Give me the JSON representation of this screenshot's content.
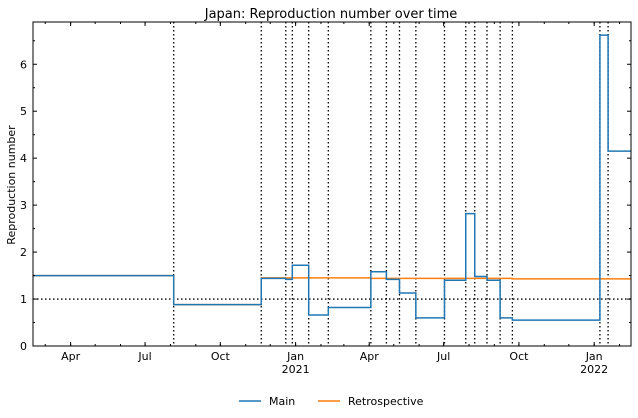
{
  "chart_data": {
    "type": "line",
    "title": "Japan: Reproduction number over time",
    "xlabel": "",
    "ylabel": "Reproduction number",
    "xlim": [
      "2020-02-15",
      "2022-02-15"
    ],
    "ylim": [
      0,
      6.9
    ],
    "x_ticks": [
      {
        "date": "2020-04-01",
        "label": "Apr",
        "sub": ""
      },
      {
        "date": "2020-07-01",
        "label": "Jul",
        "sub": ""
      },
      {
        "date": "2020-10-01",
        "label": "Oct",
        "sub": ""
      },
      {
        "date": "2021-01-01",
        "label": "Jan",
        "sub": "2021"
      },
      {
        "date": "2021-04-01",
        "label": "Apr",
        "sub": ""
      },
      {
        "date": "2021-07-01",
        "label": "Jul",
        "sub": ""
      },
      {
        "date": "2021-10-01",
        "label": "Oct",
        "sub": ""
      },
      {
        "date": "2022-01-01",
        "label": "Jan",
        "sub": "2022"
      }
    ],
    "y_ticks": [
      0,
      1,
      2,
      3,
      4,
      5,
      6
    ],
    "reference_line": 1,
    "breakpoints": [
      "2020-08-05",
      "2020-11-20",
      "2020-12-20",
      "2020-12-28",
      "2021-01-17",
      "2021-02-10",
      "2021-04-03",
      "2021-04-22",
      "2021-05-08",
      "2021-05-28",
      "2021-07-02",
      "2021-07-28",
      "2021-08-08",
      "2021-08-23",
      "2021-09-08",
      "2021-09-23",
      "2022-01-08",
      "2022-01-18"
    ],
    "series": [
      {
        "name": "Main",
        "color": "#1f77b4",
        "steps": [
          {
            "start": "2020-02-15",
            "value": 1.5
          },
          {
            "start": "2020-08-05",
            "value": 0.88
          },
          {
            "start": "2020-11-20",
            "value": 1.44
          },
          {
            "start": "2020-12-20",
            "value": 1.42
          },
          {
            "start": "2020-12-28",
            "value": 1.72
          },
          {
            "start": "2021-01-17",
            "value": 0.66
          },
          {
            "start": "2021-02-10",
            "value": 0.82
          },
          {
            "start": "2021-04-03",
            "value": 1.58
          },
          {
            "start": "2021-04-22",
            "value": 1.42
          },
          {
            "start": "2021-05-08",
            "value": 1.13
          },
          {
            "start": "2021-05-28",
            "value": 0.6
          },
          {
            "start": "2021-07-02",
            "value": 1.4
          },
          {
            "start": "2021-07-28",
            "value": 2.82
          },
          {
            "start": "2021-08-08",
            "value": 1.48
          },
          {
            "start": "2021-08-23",
            "value": 1.4
          },
          {
            "start": "2021-09-08",
            "value": 0.6
          },
          {
            "start": "2021-09-23",
            "value": 0.55
          },
          {
            "start": "2022-01-08",
            "value": 6.62
          },
          {
            "start": "2022-01-18",
            "value": 4.15
          }
        ],
        "end": "2022-02-15"
      },
      {
        "name": "Retrospective",
        "color": "#ff7f0e",
        "steps": [
          {
            "start": "2020-02-15",
            "value": 1.5
          },
          {
            "start": "2020-08-05",
            "value": 0.88
          },
          {
            "start": "2020-11-20",
            "value": 1.45
          },
          {
            "start": "2021-04-03",
            "value": 1.44
          },
          {
            "start": "2021-09-23",
            "value": 1.43
          }
        ],
        "end": "2022-02-15"
      }
    ],
    "legend_position": "bottom-center",
    "grid": false
  }
}
